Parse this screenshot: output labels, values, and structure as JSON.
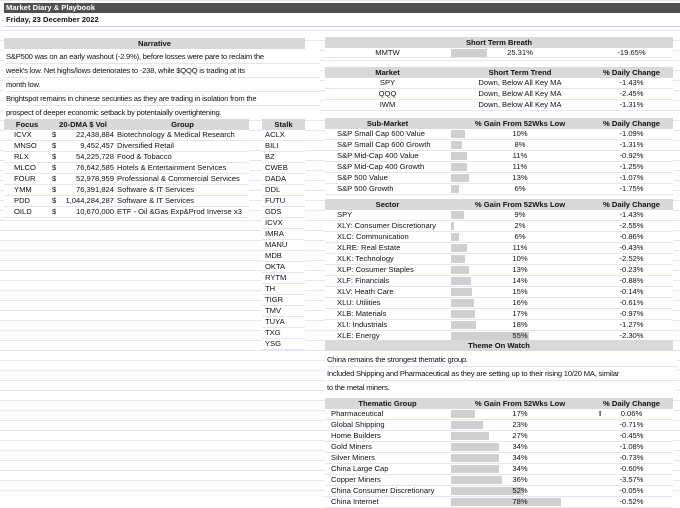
{
  "header": {
    "title": "Market Diary & Playbook",
    "date": "Friday, 23 December 2022"
  },
  "narrative": {
    "title": "Narrative",
    "lines": [
      "S&P500 was on an early washout (-2.9%), before losses were pare to reclaim the",
      "week's low. Net highs/lows deteriorates to -238, while $QQQ is trading at its",
      "month low.",
      "Brightspot remains in chinese securities as they are trading in isolation from the",
      "prospect of deeper economic setback by potentaially overtightening."
    ]
  },
  "focus": {
    "headers": [
      "Focus",
      "20-DMA $ Vol",
      "Group"
    ],
    "rows": [
      [
        "ICVX",
        "$",
        "22,438,884",
        "Biotechnology & Medical Research"
      ],
      [
        "MNSO",
        "$",
        "9,452,457",
        "Diversified Retail"
      ],
      [
        "RLX",
        "$",
        "54,225,728",
        "Food & Tobacco"
      ],
      [
        "MLCO",
        "$",
        "76,642,585",
        "Hotels & Entertainment Services"
      ],
      [
        "FOUR",
        "$",
        "52,978,959",
        "Professional & Commercial Services"
      ],
      [
        "YMM",
        "$",
        "76,391,824",
        "Software & IT Services"
      ],
      [
        "PDD",
        "$",
        "1,044,284,287",
        "Software & IT Services"
      ],
      [
        "OILD",
        "$",
        "10,670,000",
        "ETF - Oil &Gas Exp&Prod Inverse x3"
      ]
    ]
  },
  "stalk": {
    "header": "Stalk",
    "items": [
      "ACLX",
      "BILI",
      "BZ",
      "CWEB",
      "DADA",
      "DDL",
      "FUTU",
      "GDS",
      "ICVX",
      "IMRA",
      "MANU",
      "MDB",
      "OKTA",
      "RYTM",
      "TH",
      "TIGR",
      "TMV",
      "TUYA",
      "TXG",
      "YSG"
    ]
  },
  "breath": {
    "title": "Short Term Breath",
    "name": "MMTW",
    "value_label": "25.31%",
    "value": 25.31,
    "change": "-19.65%"
  },
  "market": {
    "headers": [
      "Market",
      "Short Term Trend",
      "% Daily Change"
    ],
    "rows": [
      [
        "SPY",
        "Down, Below All Key MA",
        "-1.43%"
      ],
      [
        "QQQ",
        "Down, Below All Key MA",
        "-2.45%"
      ],
      [
        "IWM",
        "Down, Below All Key MA",
        "-1.31%"
      ]
    ]
  },
  "submarket": {
    "headers": [
      "Sub-Market",
      "% Gain From 52Wks Low",
      "% Daily Change"
    ],
    "rows": [
      [
        "S&P Small Cap 600 Value",
        10,
        "-1.09%"
      ],
      [
        "S&P Small Cap 600 Growth",
        8,
        "-1.31%"
      ],
      [
        "S&P Mid-Cap 400 Value",
        11,
        "-0.92%"
      ],
      [
        "S&P Mid-Cap 400 Growth",
        11,
        "-1.25%"
      ],
      [
        "S&P 500 Value",
        13,
        "-1.07%"
      ],
      [
        "S&P 500 Growth",
        6,
        "-1.75%"
      ]
    ]
  },
  "sector": {
    "headers": [
      "Sector",
      "% Gain From 52Wks Low",
      "% Daily Change"
    ],
    "rows": [
      [
        "SPY",
        9,
        "-1.43%"
      ],
      [
        "XLY:  Consumer Discretionary",
        2,
        "-2.55%"
      ],
      [
        "XLC:  Communication",
        6,
        "-0.86%"
      ],
      [
        "XLRE: Real Estate",
        11,
        "-0.43%"
      ],
      [
        "XLK:  Technology",
        10,
        "-2.52%"
      ],
      [
        "XLP:  Cosumer Staples",
        13,
        "-0.23%"
      ],
      [
        "XLF:   Financials",
        14,
        "-0.88%"
      ],
      [
        "XLV:  Heath Care",
        15,
        "-0.14%"
      ],
      [
        "XLU:  Utilities",
        16,
        "-0.61%"
      ],
      [
        "XLB:   Materials",
        17,
        "-0.97%"
      ],
      [
        "XLI:   Industrials",
        18,
        "-1.27%"
      ],
      [
        "XLE:  Energy",
        55,
        "-2.30%"
      ]
    ]
  },
  "theme": {
    "title": "Theme On Watch",
    "lines": [
      "China remains the strongest thematic group.",
      "Included Shipping and Pharmaceutical as they are setting up to their rising 10/20 MA, similar",
      "to the metal miners."
    ]
  },
  "thematic": {
    "headers": [
      "Thematic Group",
      "% Gain From 52Wks Low",
      "% Daily Change"
    ],
    "up_icon": "arrow-up-icon",
    "rows": [
      [
        "Pharmaceutical",
        17,
        "0.06%"
      ],
      [
        "Global Shipping",
        23,
        "-0.71%"
      ],
      [
        "Home Builders",
        27,
        "-0.45%"
      ],
      [
        "Gold Miners",
        34,
        "-1.08%"
      ],
      [
        "Silver Miners",
        34,
        "-0.73%"
      ],
      [
        "China Large Cap",
        34,
        "-0.60%"
      ],
      [
        "Copper Miners",
        36,
        "-3.57%"
      ],
      [
        "China Consumer Discretionary",
        52,
        "-0.05%"
      ],
      [
        "China Internet",
        78,
        "-0.52%"
      ]
    ]
  },
  "colors": {
    "title_bar": "#505050",
    "header_fill": "#d9d9d9",
    "bar_fill": "#cfcfcf"
  }
}
